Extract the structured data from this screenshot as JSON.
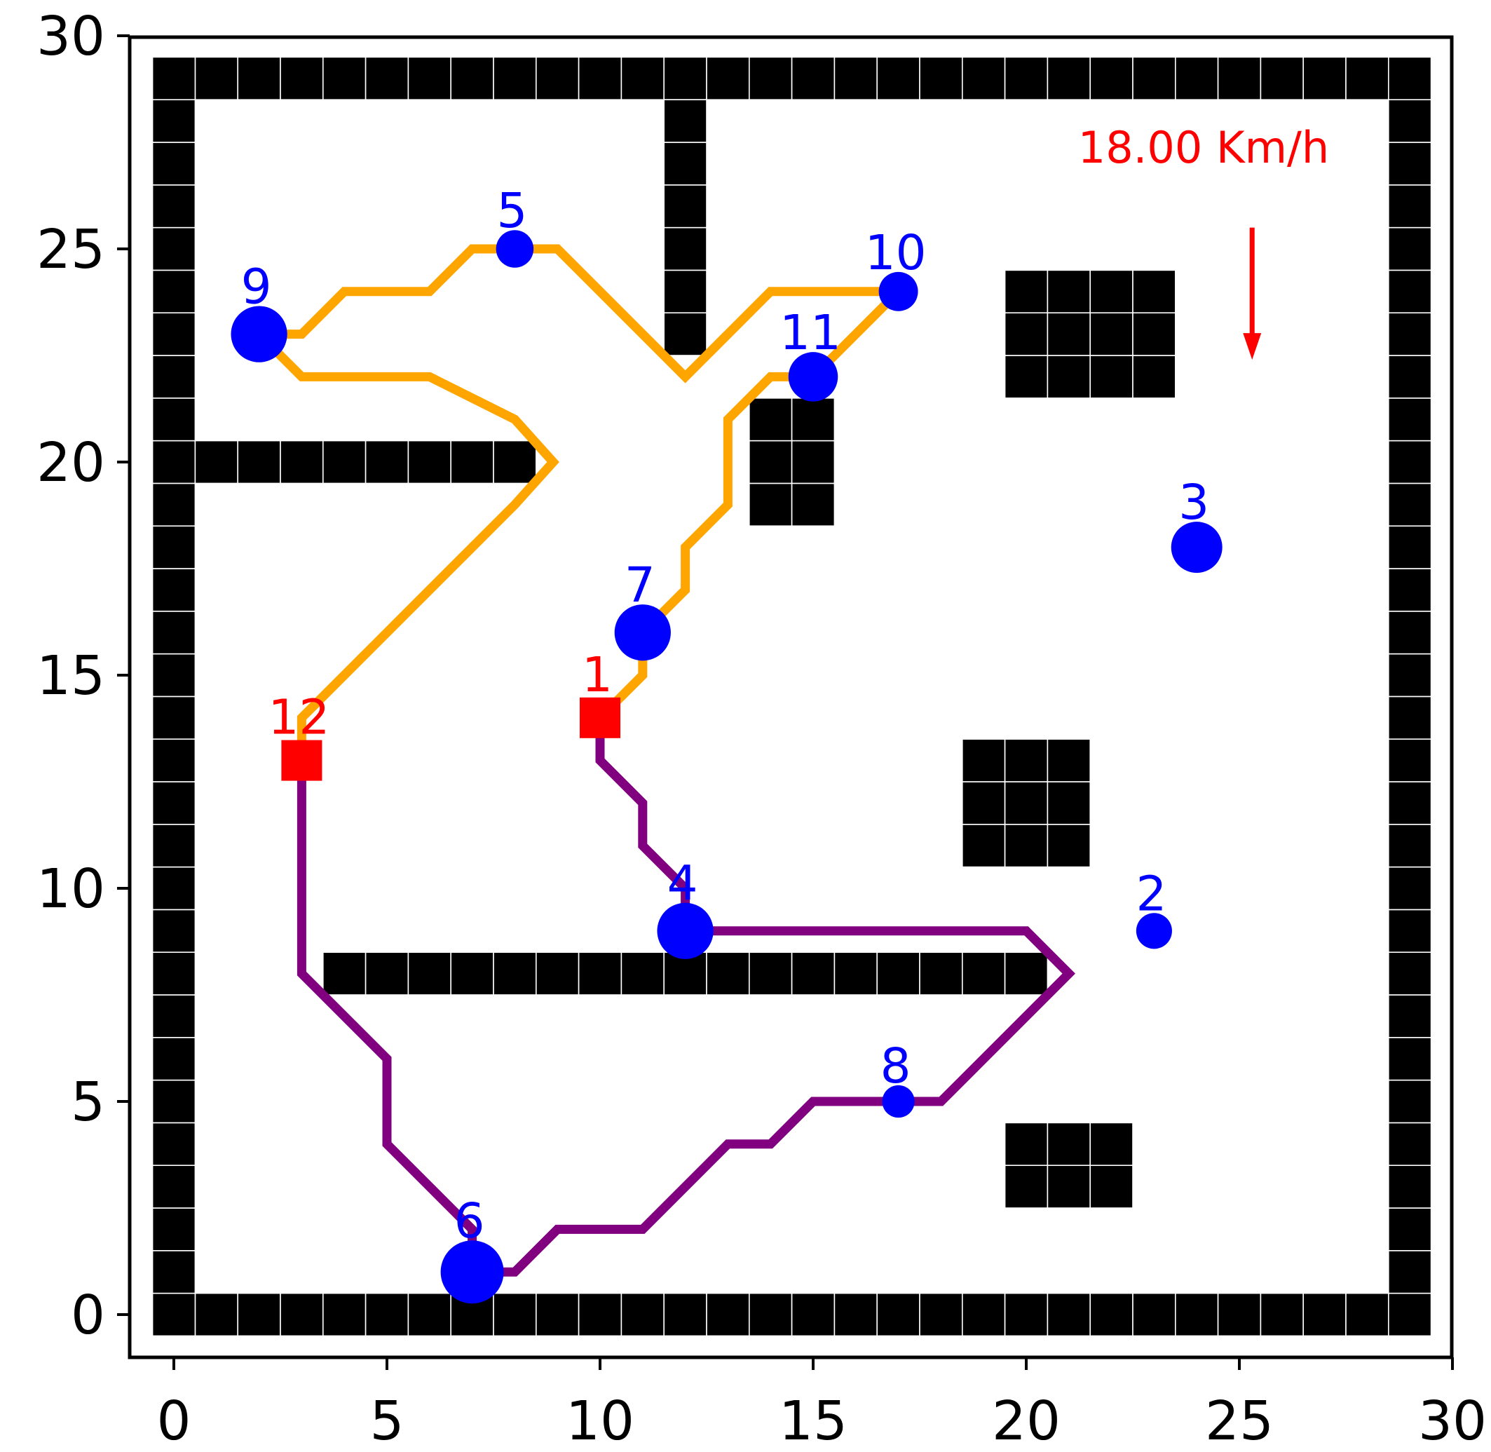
{
  "chart_data": {
    "type": "scatter",
    "title": "",
    "xlabel": "",
    "ylabel": "",
    "xlim": [
      -1,
      30
    ],
    "ylim": [
      -1,
      30
    ],
    "xticks": [
      0,
      5,
      10,
      15,
      20,
      25,
      30
    ],
    "yticks": [
      0,
      5,
      10,
      15,
      20,
      25,
      30
    ],
    "grid": false,
    "obstacles": [
      {
        "x": [
          0,
          29
        ],
        "y": [
          29,
          29
        ]
      },
      {
        "x": [
          0,
          29
        ],
        "y": [
          0,
          0
        ]
      },
      {
        "x": [
          0,
          0
        ],
        "y": [
          0,
          29
        ]
      },
      {
        "x": [
          29,
          29
        ],
        "y": [
          0,
          29
        ]
      },
      {
        "x": [
          1,
          8
        ],
        "y": [
          20,
          20
        ]
      },
      {
        "x": [
          12,
          12
        ],
        "y": [
          23,
          28
        ]
      },
      {
        "x": [
          4,
          20
        ],
        "y": [
          8,
          8
        ]
      },
      {
        "x": [
          14,
          15
        ],
        "y": [
          19,
          21
        ]
      },
      {
        "x": [
          20,
          23
        ],
        "y": [
          22,
          24
        ]
      },
      {
        "x": [
          19,
          21
        ],
        "y": [
          11,
          13
        ]
      },
      {
        "x": [
          20,
          22
        ],
        "y": [
          3,
          4
        ]
      }
    ],
    "depots": [
      {
        "label": "1",
        "x": 10,
        "y": 14
      },
      {
        "label": "12",
        "x": 3,
        "y": 13
      }
    ],
    "nodes": [
      {
        "label": "2",
        "x": 23,
        "y": 9,
        "size": 0.42
      },
      {
        "label": "3",
        "x": 24,
        "y": 18,
        "size": 0.6
      },
      {
        "label": "4",
        "x": 12,
        "y": 9,
        "size": 0.66
      },
      {
        "label": "5",
        "x": 8,
        "y": 25,
        "size": 0.44
      },
      {
        "label": "6",
        "x": 7,
        "y": 1,
        "size": 0.74
      },
      {
        "label": "7",
        "x": 11,
        "y": 16,
        "size": 0.66
      },
      {
        "label": "8",
        "x": 17,
        "y": 5,
        "size": 0.38
      },
      {
        "label": "9",
        "x": 2,
        "y": 23,
        "size": 0.66
      },
      {
        "label": "10",
        "x": 17,
        "y": 24,
        "size": 0.46
      },
      {
        "label": "11",
        "x": 15,
        "y": 22,
        "size": 0.58
      }
    ],
    "routes": [
      {
        "color": "#ffa500",
        "x": [
          10,
          11,
          11,
          12,
          12,
          13,
          13,
          14,
          15,
          17,
          14,
          12,
          9,
          8,
          7,
          6,
          4,
          3,
          2,
          3,
          6,
          8,
          8.9,
          8,
          7,
          6,
          3,
          3
        ],
        "y": [
          14,
          15,
          16,
          17,
          18,
          19,
          21,
          22,
          22,
          24,
          24,
          22,
          25,
          25,
          25,
          24,
          24,
          23,
          23,
          22,
          22,
          21,
          20,
          19,
          18,
          17,
          14,
          13
        ]
      },
      {
        "color": "#800080",
        "x": [
          10,
          10,
          11,
          11,
          12,
          12,
          20,
          21,
          18,
          15,
          14,
          13,
          11,
          9,
          8,
          7,
          7,
          5,
          5,
          3,
          3
        ],
        "y": [
          14,
          13,
          12,
          11,
          10,
          9,
          9,
          8,
          5,
          5,
          4,
          4,
          2,
          2,
          1,
          1,
          2,
          4,
          6,
          8,
          13
        ]
      }
    ],
    "annotation": {
      "text": "18.00 Km/h",
      "color": "#ff0000"
    },
    "arrow": {
      "x": 25.3,
      "y_from": 25.5,
      "y_to": 22.4,
      "color": "#ff0000"
    },
    "colors": {
      "node": "#0000ff",
      "node_label": "#0000ff",
      "depot": "#ff0000",
      "depot_label": "#ff0000",
      "obstacle": "#000000"
    }
  }
}
